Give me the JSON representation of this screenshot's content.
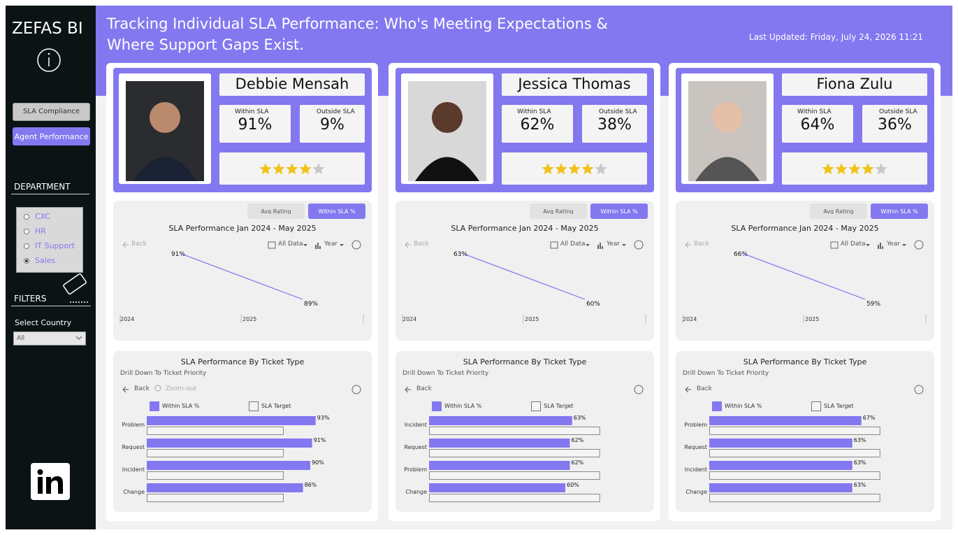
{
  "sidebar": {
    "brand": "ZEFAS BI",
    "nav": [
      "SLA Compliance",
      "Agent Performance"
    ],
    "department_title": "DEPARTMENT",
    "departments": [
      {
        "label": "CXC",
        "selected": false
      },
      {
        "label": "HR",
        "selected": false
      },
      {
        "label": "IT Support",
        "selected": false
      },
      {
        "label": "Sales",
        "selected": true
      }
    ],
    "filters_title": "FILTERS",
    "country_label": "Select Country",
    "country_value": "All"
  },
  "header": {
    "title_lines": [
      "Tracking Individual SLA Performance: Who's Meeting Expectations &",
      "Where Support Gaps Exist."
    ],
    "last_updated": "Last Updated: Friday, July 24, 2026 11:21"
  },
  "agents": [
    {
      "name": "Debbie Mensah",
      "within_label": "Within SLA",
      "within": "91%",
      "outside_label": "Outside SLA",
      "outside": "9%",
      "rating": 4,
      "rating_max": 5,
      "trend": {
        "tabs": [
          "Avg Rating",
          "Within SLA %"
        ],
        "title": "SLA Performance Jan 2024 - May 2025",
        "back": "Back",
        "all_data": "All Data",
        "year": "Year",
        "x_labels": [
          "2024",
          "2025"
        ],
        "values": [
          91,
          89
        ],
        "value_labels": [
          "91%",
          "89%"
        ]
      },
      "tickets": {
        "title": "SLA Performance By Ticket Type",
        "subtitle": "Drill Down To Ticket Priority",
        "back": "Back",
        "zoom": "Zoom-out",
        "legend": [
          "Within SLA %",
          "SLA Target"
        ],
        "xlim": [
          0,
          100
        ],
        "categories": [
          "Problem",
          "Request",
          "Incident",
          "Change"
        ],
        "values": [
          93,
          91,
          90,
          86
        ],
        "value_labels": [
          "93%",
          "91%",
          "90%",
          "86%"
        ],
        "targets": [
          75,
          75,
          75,
          75
        ]
      }
    },
    {
      "name": "Jessica Thomas",
      "within_label": "Within SLA",
      "within": "62%",
      "outside_label": "Outside SLA",
      "outside": "38%",
      "rating": 4,
      "rating_max": 5,
      "trend": {
        "tabs": [
          "Avg Rating",
          "Within SLA %"
        ],
        "title": "SLA Performance Jan 2024 - May 2025",
        "back": "Back",
        "all_data": "All Data",
        "year": "Year",
        "x_labels": [
          "2024",
          "2025"
        ],
        "values": [
          63,
          60
        ],
        "value_labels": [
          "63%",
          "60%"
        ]
      },
      "tickets": {
        "title": "SLA Performance By Ticket Type",
        "subtitle": "Drill Down To Ticket Priority",
        "back": "Back",
        "legend": [
          "Within SLA %",
          "SLA Target"
        ],
        "xlim": [
          0,
          80
        ],
        "categories": [
          "Incident",
          "Request",
          "Problem",
          "Change"
        ],
        "values": [
          63,
          62,
          62,
          60
        ],
        "value_labels": [
          "63%",
          "62%",
          "62%",
          "60%"
        ],
        "targets": [
          75,
          75,
          75,
          75
        ]
      }
    },
    {
      "name": "Fiona Zulu",
      "within_label": "Within SLA",
      "within": "64%",
      "outside_label": "Outside SLA",
      "outside": "36%",
      "rating": 4,
      "rating_max": 5,
      "trend": {
        "tabs": [
          "Avg Rating",
          "Within SLA %"
        ],
        "title": "SLA Performance Jan 2024 - May 2025",
        "back": "Back",
        "all_data": "All Data",
        "year": "Year",
        "x_labels": [
          "2024",
          "2025"
        ],
        "values": [
          66,
          59
        ],
        "value_labels": [
          "66%",
          "59%"
        ]
      },
      "tickets": {
        "title": "SLA Performance By Ticket Type",
        "subtitle": "Drill Down To Ticket Priority",
        "back": "Back",
        "legend": [
          "Within SLA %",
          "SLA Target"
        ],
        "xlim": [
          0,
          80
        ],
        "categories": [
          "Problem",
          "Request",
          "Incident",
          "Change"
        ],
        "values": [
          67,
          63,
          63,
          63
        ],
        "value_labels": [
          "67%",
          "63%",
          "63%",
          "63%"
        ],
        "targets": [
          75,
          75,
          75,
          75
        ]
      }
    }
  ]
}
